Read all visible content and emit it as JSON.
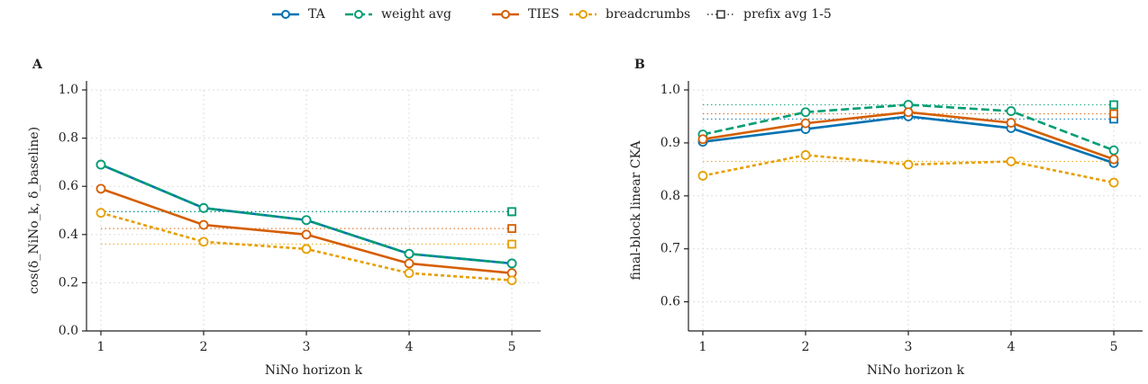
{
  "legend": {
    "prefix_label": "prefix avg 1-5"
  },
  "chart_data": [
    {
      "type": "line",
      "panel": "A",
      "xlabel": "NiNo horizon k",
      "ylabel": "cos(δ_NiNo_k, δ_baseline)",
      "x": [
        1,
        2,
        3,
        4,
        5
      ],
      "xlim": [
        0.86,
        5.28
      ],
      "xticks": [
        1,
        2,
        3,
        4,
        5
      ],
      "ylim": [
        0,
        1.0
      ],
      "yticks": [
        {
          "value": 0,
          "label": "0.0"
        },
        {
          "value": 0.2,
          "label": "0.2"
        },
        {
          "value": 0.4,
          "label": "0.4"
        },
        {
          "value": 0.6,
          "label": "0.6"
        },
        {
          "value": 0.8,
          "label": "0.8"
        },
        {
          "value": 1.0,
          "label": "1.0"
        }
      ],
      "grid": true,
      "series": [
        {
          "name": "TA",
          "color": "#0072b2",
          "dash": "solid",
          "values": [
            0.69,
            0.51,
            0.46,
            0.32,
            0.28
          ],
          "prefix_avg": 0.495
        },
        {
          "name": "weight avg",
          "color": "#009e73",
          "dash": "dashed",
          "values": [
            0.69,
            0.51,
            0.46,
            0.32,
            0.28
          ],
          "prefix_avg": 0.495
        },
        {
          "name": "TIES",
          "color": "#d55e00",
          "dash": "solid",
          "values": [
            0.59,
            0.44,
            0.4,
            0.28,
            0.24
          ],
          "prefix_avg": 0.425
        },
        {
          "name": "breadcrumbs",
          "color": "#e69f00",
          "dash": "dotted",
          "values": [
            0.49,
            0.37,
            0.34,
            0.24,
            0.21
          ],
          "prefix_avg": 0.36
        }
      ]
    },
    {
      "type": "line",
      "panel": "B",
      "xlabel": "NiNo horizon k",
      "ylabel": "final-block linear CKA",
      "x": [
        1,
        2,
        3,
        4,
        5
      ],
      "xlim": [
        0.86,
        5.28
      ],
      "xticks": [
        1,
        2,
        3,
        4,
        5
      ],
      "ylim": [
        0.545,
        1.0
      ],
      "yticks": [
        {
          "value": 0.6,
          "label": "0.6"
        },
        {
          "value": 0.7,
          "label": "0.7"
        },
        {
          "value": 0.8,
          "label": "0.8"
        },
        {
          "value": 0.9,
          "label": "0.9"
        },
        {
          "value": 1.0,
          "label": "1.0"
        }
      ],
      "grid": true,
      "series": [
        {
          "name": "TA",
          "color": "#0072b2",
          "dash": "solid",
          "values": [
            0.902,
            0.926,
            0.95,
            0.928,
            0.862
          ],
          "prefix_avg": 0.945
        },
        {
          "name": "weight avg",
          "color": "#009e73",
          "dash": "dashed",
          "values": [
            0.916,
            0.958,
            0.972,
            0.96,
            0.886
          ],
          "prefix_avg": 0.972
        },
        {
          "name": "TIES",
          "color": "#d55e00",
          "dash": "solid",
          "values": [
            0.907,
            0.937,
            0.958,
            0.938,
            0.869
          ],
          "prefix_avg": 0.955
        },
        {
          "name": "breadcrumbs",
          "color": "#e69f00",
          "dash": "dotted",
          "values": [
            0.838,
            0.877,
            0.859,
            0.865,
            0.825
          ],
          "prefix_avg": 0.865
        }
      ]
    }
  ]
}
